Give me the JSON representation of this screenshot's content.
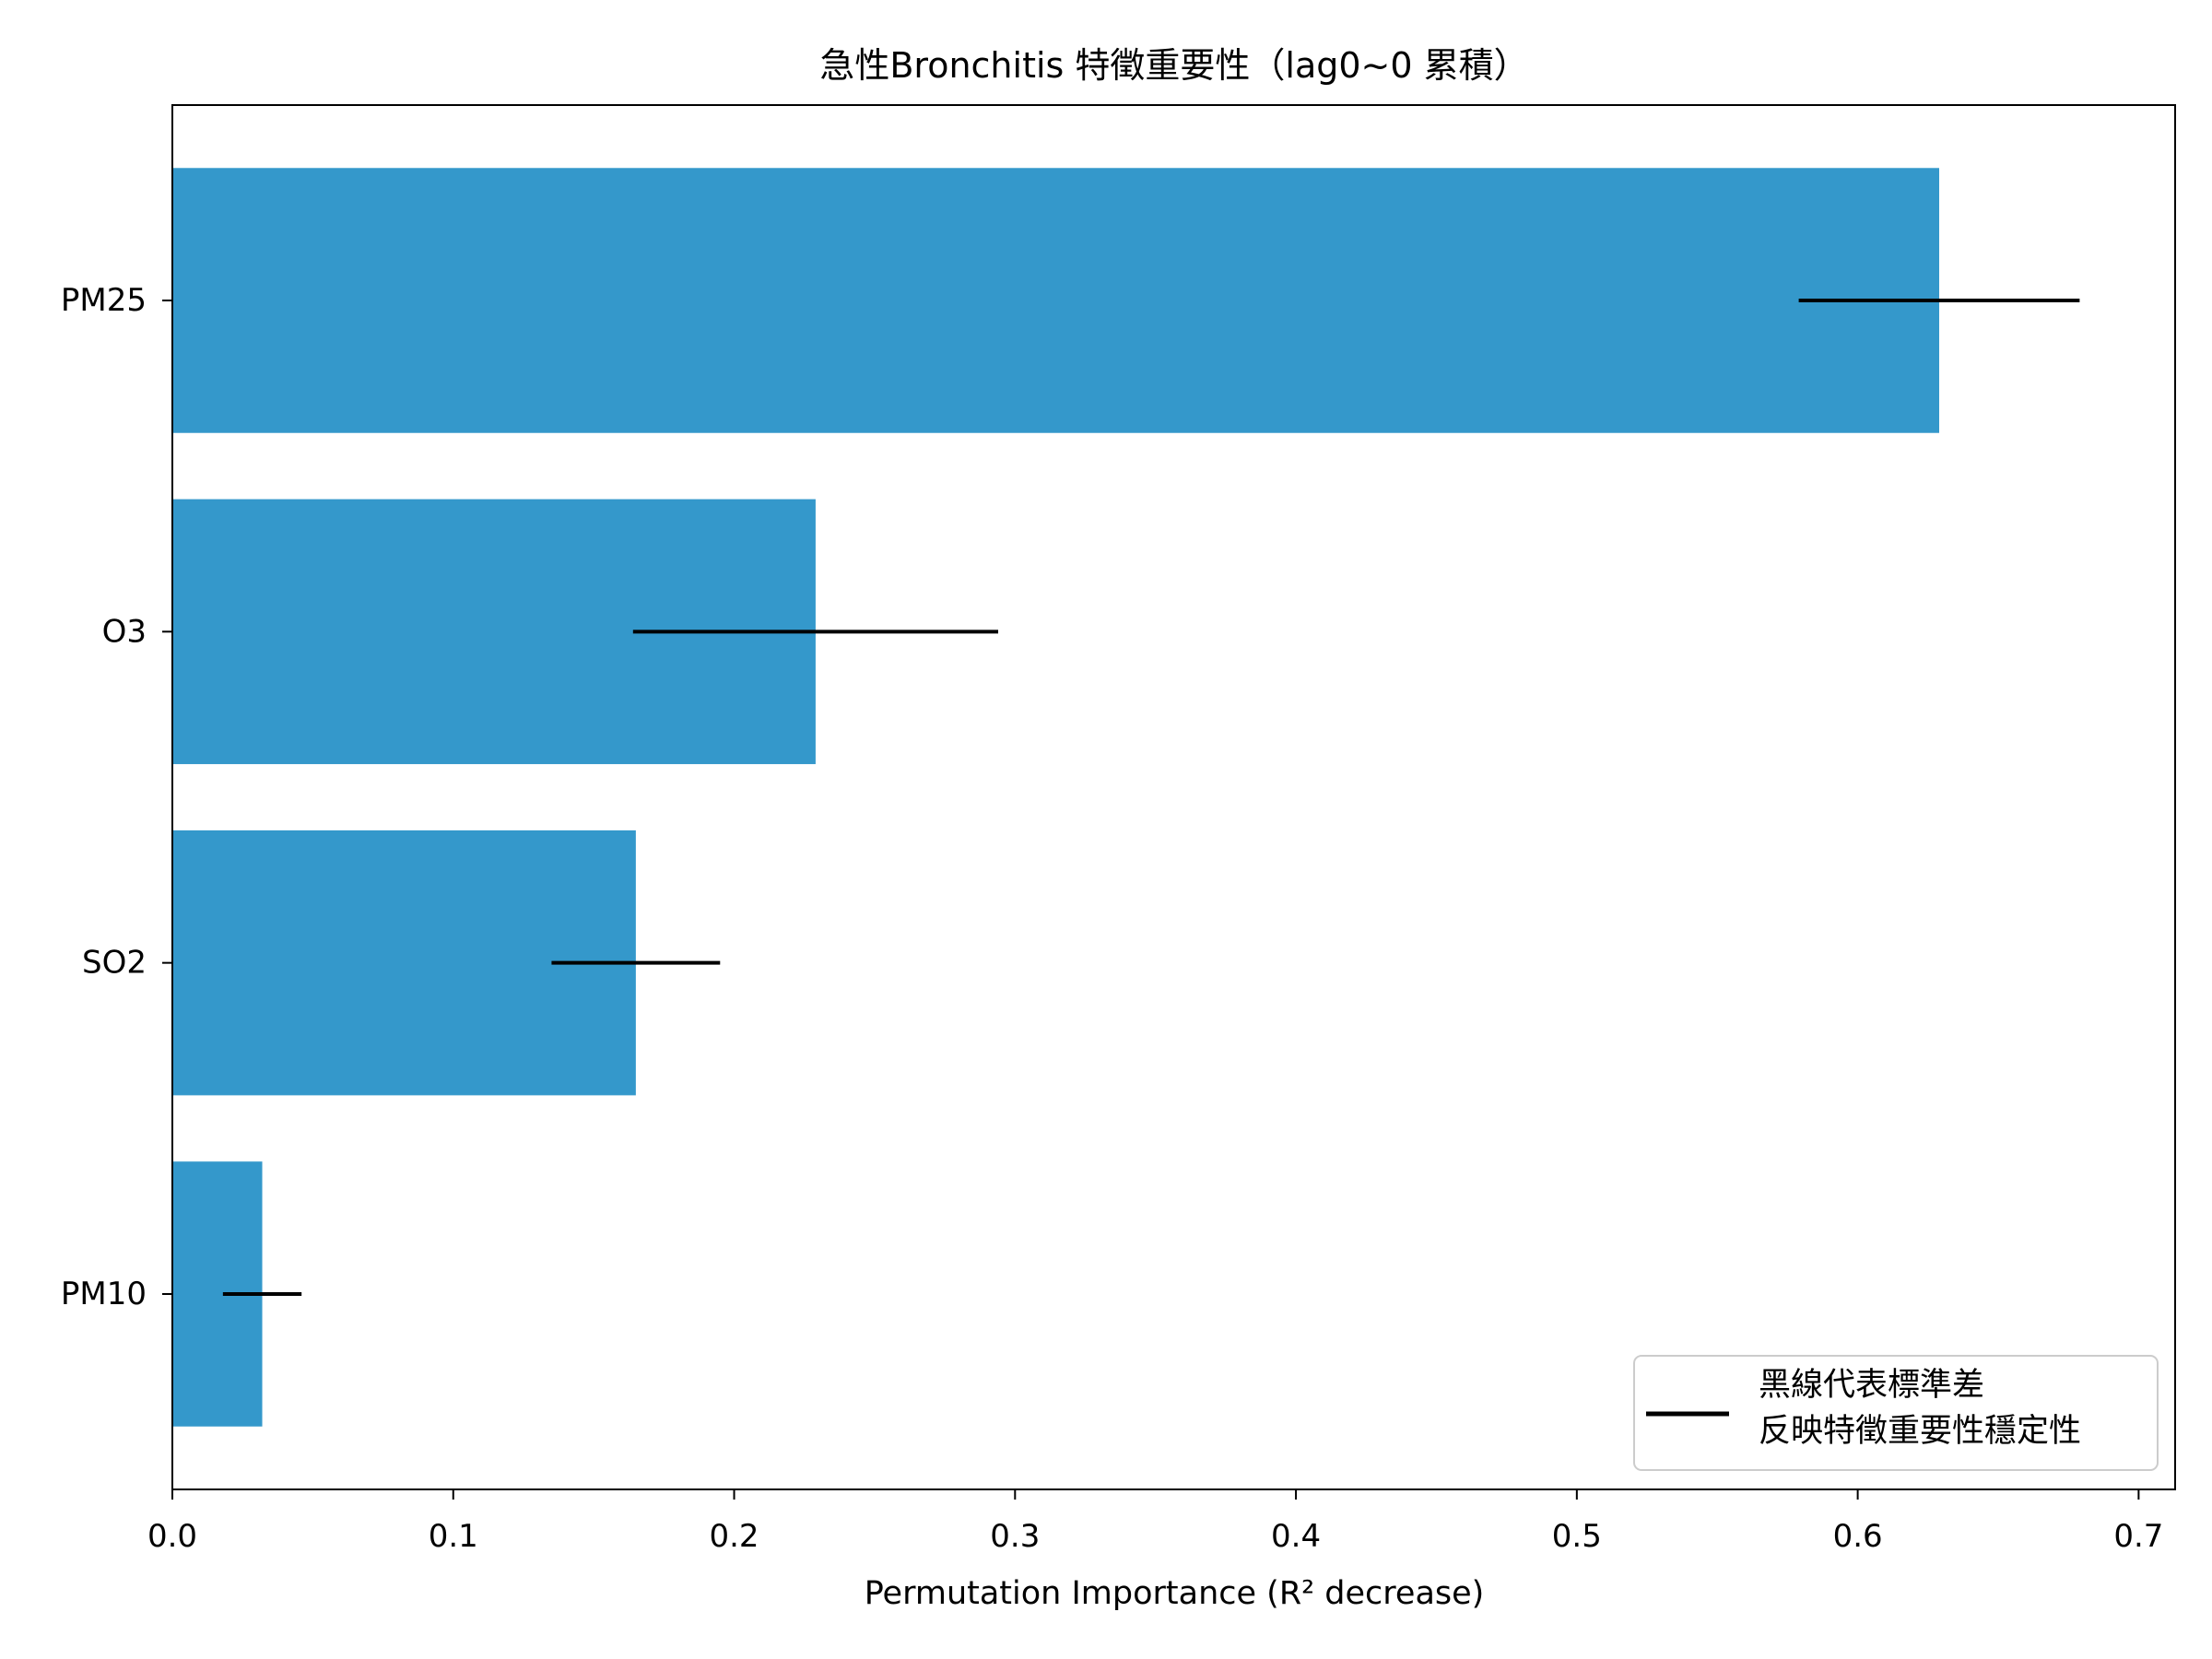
{
  "chart_data": {
    "type": "bar",
    "orientation": "horizontal",
    "title": "急性Bronchitis 特徵重要性（lag0~0 累積）",
    "xlabel": "Permutation Importance (R² decrease)",
    "categories": [
      "PM25",
      "O3",
      "SO2",
      "PM10"
    ],
    "values": [
      0.629,
      0.229,
      0.165,
      0.032
    ],
    "std": [
      0.05,
      0.065,
      0.03,
      0.014
    ],
    "xlim": [
      0,
      0.713
    ],
    "xticks": [
      "0.0",
      "0.1",
      "0.2",
      "0.3",
      "0.4",
      "0.5",
      "0.6",
      "0.7"
    ],
    "grid": false,
    "bar_color": "#3498cb",
    "error_color": "#000000",
    "legend": {
      "position": "lower right",
      "lines": [
        "黑線代表標準差",
        "反映特徵重要性穩定性"
      ]
    }
  }
}
